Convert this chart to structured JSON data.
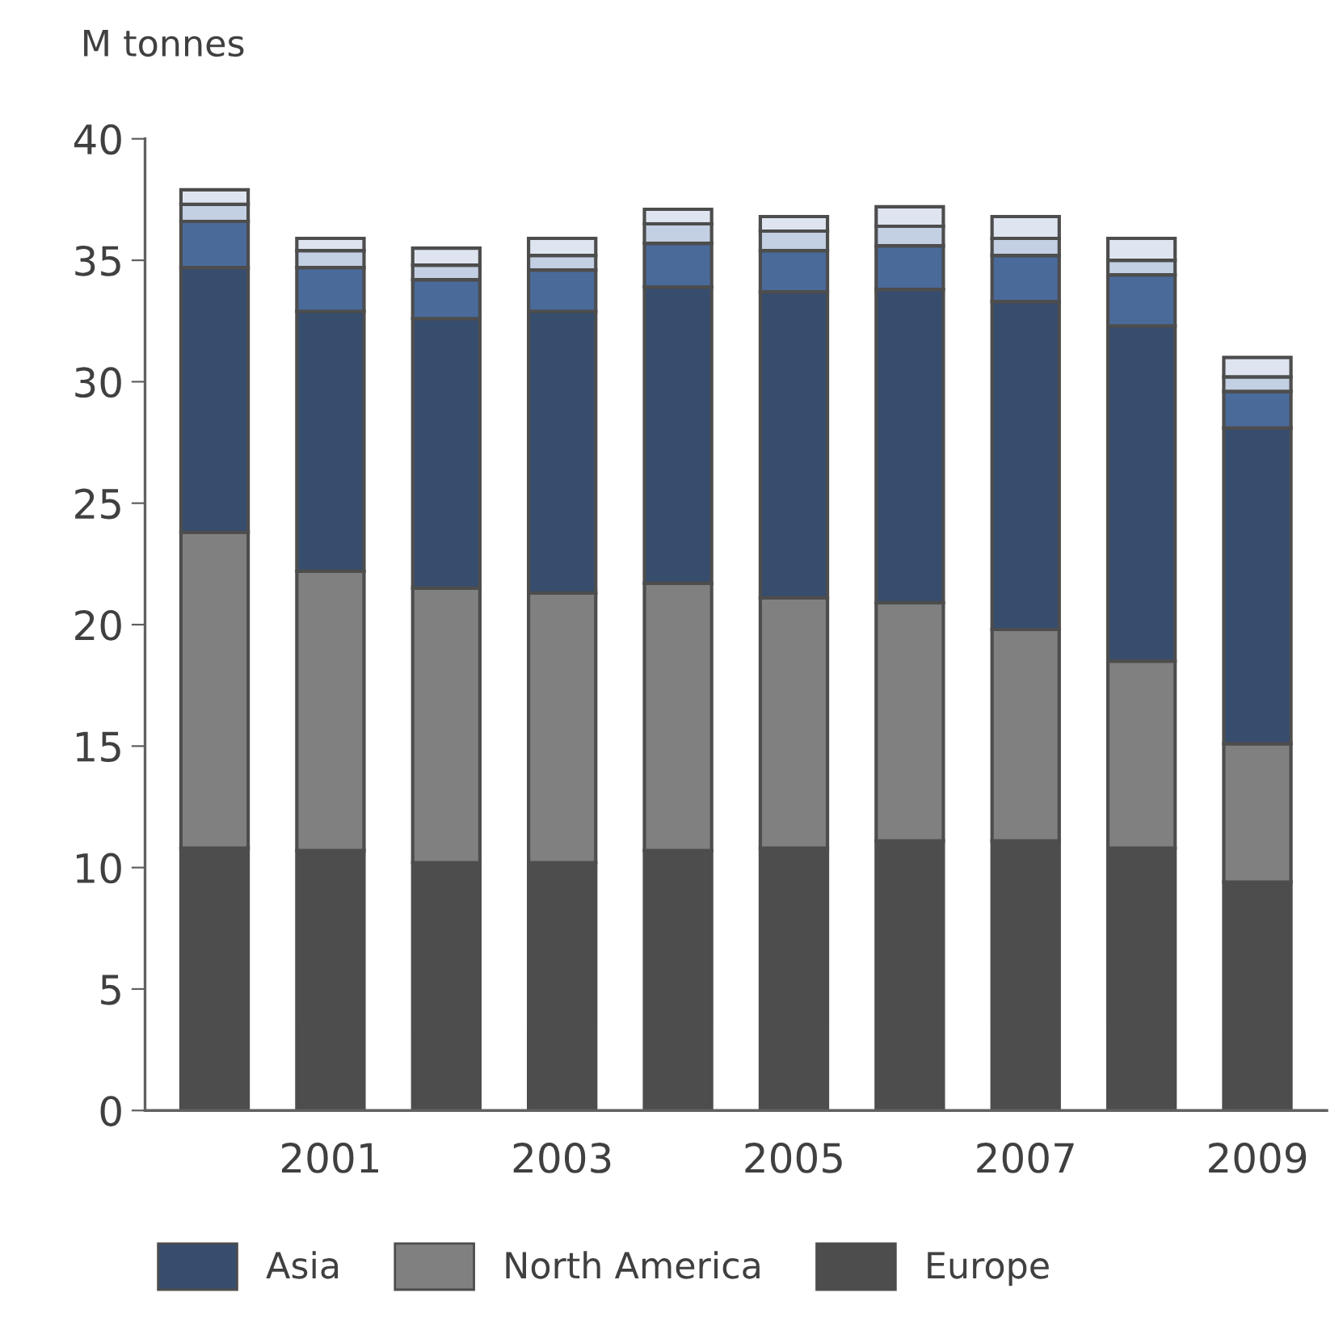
{
  "chart_data": {
    "type": "bar",
    "stacked": true,
    "ylabel": "M tonnes",
    "categories": [
      null,
      "2001",
      null,
      "2003",
      null,
      "2005",
      null,
      "2007",
      null,
      "2009"
    ],
    "series": [
      {
        "name": "Europe",
        "color": "#4d4d4d",
        "values": [
          10.8,
          10.7,
          10.2,
          10.2,
          10.7,
          10.8,
          11.1,
          11.1,
          10.8,
          9.4
        ]
      },
      {
        "name": "North America",
        "color": "#808080",
        "values": [
          13.0,
          11.5,
          11.3,
          11.1,
          11.0,
          10.3,
          9.8,
          8.7,
          7.7,
          5.7
        ]
      },
      {
        "name": "Asia",
        "color": "#374d6e",
        "values": [
          10.9,
          10.7,
          11.1,
          11.6,
          12.2,
          12.6,
          12.9,
          13.5,
          13.8,
          13.0
        ]
      },
      {
        "color": "#4a6a9a",
        "values": [
          1.9,
          1.8,
          1.6,
          1.7,
          1.8,
          1.7,
          1.8,
          1.9,
          2.1,
          1.5
        ]
      },
      {
        "color": "#c3cfe2",
        "values": [
          0.7,
          0.7,
          0.6,
          0.6,
          0.8,
          0.8,
          0.8,
          0.7,
          0.6,
          0.6
        ]
      },
      {
        "color": "#dfe5f0",
        "values": [
          0.6,
          0.5,
          0.7,
          0.7,
          0.6,
          0.6,
          0.8,
          0.9,
          0.9,
          0.8
        ]
      }
    ],
    "ylim": [
      0,
      40
    ],
    "yticks": [
      0,
      5,
      10,
      15,
      20,
      25,
      30,
      35,
      40
    ],
    "grid": false,
    "legend": "bottom"
  }
}
